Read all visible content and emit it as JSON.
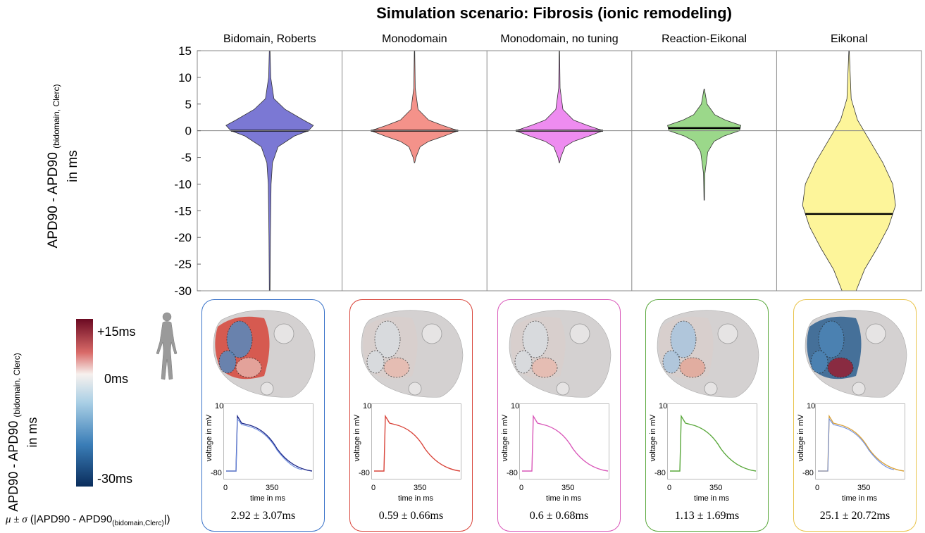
{
  "title": "Simulation scenario: Fibrosis (ionic remodeling)",
  "violin_ylabel_main": "APD90 - APD90",
  "violin_ylabel_sub": "(bidomain, Clerc)",
  "violin_ylabel_unit": "in ms",
  "colorbar": {
    "label_main": "APD90 - APD90",
    "label_sub": "(bidomain, Clerc)",
    "label_unit": "in ms",
    "max_label": "+15ms",
    "mid_label": "0ms",
    "min_label": "-30ms"
  },
  "stat_row_label": {
    "prefix": "μ ± σ",
    "body": "(|APD90 - APD90",
    "sub": "(bidomain,Clerc)",
    "suffix": "|)"
  },
  "ap_axes": {
    "xlabel": "time in ms",
    "ylabel": "voltage in mV",
    "ytick_top": "10",
    "ytick_bot": "-80",
    "xtick_0": "0",
    "xtick_350": "350"
  },
  "chart_data": {
    "type": "violin",
    "ylim": [
      -30,
      15
    ],
    "yticks": [
      15,
      10,
      5,
      0,
      -5,
      -10,
      -15,
      -20,
      -25,
      -30
    ],
    "grid_zero_line": true,
    "series": [
      {
        "name": "Bidomain, Roberts",
        "color": "#7b78d4",
        "median": 0.0,
        "mean": 2.92,
        "std": 3.07,
        "stat_text": "2.92 ± 3.07ms",
        "border": "#3a73c9"
      },
      {
        "name": "Monodomain",
        "color": "#f4928a",
        "median": 0.0,
        "mean": 0.59,
        "std": 0.66,
        "stat_text": "0.59 ± 0.66ms",
        "border": "#d9443a"
      },
      {
        "name": "Monodomain, no tuning",
        "color": "#ee8cf0",
        "median": 0.0,
        "mean": 0.6,
        "std": 0.68,
        "stat_text": "0.6 ± 0.68ms",
        "border": "#d957b9"
      },
      {
        "name": "Reaction-Eikonal",
        "color": "#9bd88a",
        "median": 0.5,
        "mean": 1.13,
        "std": 1.69,
        "stat_text": "1.13 ± 1.69ms",
        "border": "#5aa83c"
      },
      {
        "name": "Eikonal",
        "color": "#fdf59a",
        "median": -15.6,
        "mean": 25.1,
        "std": 20.72,
        "stat_text": "25.1 ± 20.72ms",
        "border": "#e9c44a"
      }
    ]
  }
}
